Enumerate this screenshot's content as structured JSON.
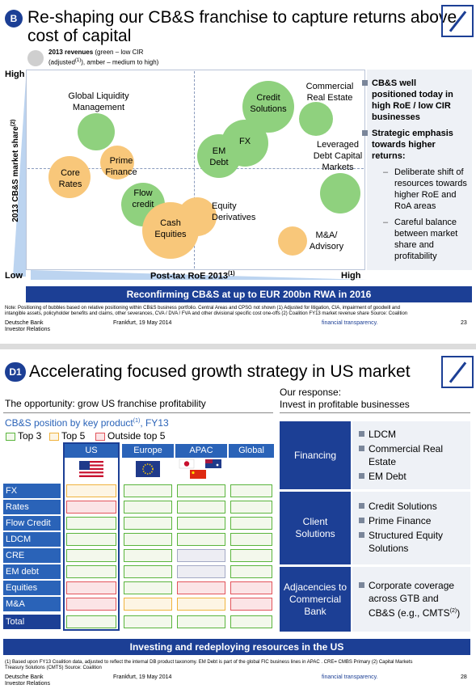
{
  "slide1": {
    "badge": "B",
    "title_line1": "Re-shaping our CB&S franchise to capture returns above",
    "title_line2": "cost of capital",
    "legend_bold": "2013 revenues",
    "legend_rest": " (green – low CIR",
    "legend_line2_a": "(adjusted",
    "legend_line2_sup": "(1)",
    "legend_line2_b": "), amber – medium to high)",
    "axis_high_y": "High",
    "axis_low": "Low",
    "axis_high_x": "High",
    "y_axis_title": "2013 CB&S market share",
    "y_axis_sup": "(2)",
    "x_axis_title": "Post-tax RoE 2013",
    "x_axis_sup": "(1)",
    "bubbles": [
      {
        "label": "Global Liquidity Management",
        "color": "green"
      },
      {
        "label": "Core Rates",
        "color": "amber"
      },
      {
        "label": "Prime Finance",
        "color": "amber"
      },
      {
        "label": "Flow credit",
        "color": "green"
      },
      {
        "label": "Cash Equities",
        "color": "amber"
      },
      {
        "label": "Equity Derivatives",
        "color": "amber"
      },
      {
        "label": "EM Debt",
        "color": "green"
      },
      {
        "label": "FX",
        "color": "green"
      },
      {
        "label": "Credit Solutions",
        "color": "green"
      },
      {
        "label": "Commercial Real Estate",
        "color": "green"
      },
      {
        "label": "Leveraged Debt Capital Markets",
        "color": "green"
      },
      {
        "label": "M&A/ Advisory",
        "color": "amber"
      }
    ],
    "labels": {
      "glm1": "Global Liquidity",
      "glm2": "Management",
      "core1": "Core",
      "core2": "Rates",
      "prime1": "Prime",
      "prime2": "Finance",
      "flow1": "Flow",
      "flow2": "credit",
      "cash1": "Cash",
      "cash2": "Equities",
      "eqd1": "Equity",
      "eqd2": "Derivatives",
      "em1": "EM",
      "em2": "Debt",
      "fx": "FX",
      "cs1": "Credit",
      "cs2": "Solutions",
      "cre1": "Commercial",
      "cre2": "Real Estate",
      "ldcm1": "Leveraged",
      "ldcm2": "Debt Capital",
      "ldcm3": "Markets",
      "ma1": "M&A/",
      "ma2": "Advisory"
    },
    "right_bullets": {
      "b1_l1": "CB&S well",
      "b1_l2": "positioned today in",
      "b1_l3": "high RoE / low CIR",
      "b1_l4": "businesses",
      "b2_l1": "Strategic emphasis",
      "b2_l2": "towards higher",
      "b2_l3": "returns:",
      "s1_l1": "Deliberate shift of",
      "s1_l2": "resources towards",
      "s1_l3": "higher RoE and",
      "s1_l4": "RoA areas",
      "s2_l1": "Careful balance",
      "s2_l2": "between market",
      "s2_l3": "share and",
      "s2_l4": "profitability"
    },
    "banner": "Reconfirming CB&S at up to EUR 200bn RWA in 2016",
    "note_l1": "Note: Positioning of bubbles based on relative positioning within CB&S business portfolio. Central Areas and CPSG not shown    (1) Adjusted for litigation, CIA, impairment of goodwill and",
    "note_l2": "intangible assets, policyholder benefits and claims, other severances, CVA / DVA / FVA and other divisional specific cost one-offs    (2) Coalition FY13 market revenue share    Source: Coalition",
    "footer_org1": "Deutsche Bank",
    "footer_org2": "Investor Relations",
    "footer_date": "Frankfurt, 19 May 2014",
    "footer_tag": "financial transparency.",
    "page": "23"
  },
  "slide2": {
    "badge": "D1",
    "title": "Accelerating focused growth strategy in US market",
    "opportunity": "The opportunity: grow US franchise profitability",
    "response_l1": "Our response:",
    "response_l2": "Invest in profitable businesses",
    "position_title": "CB&S position by key product",
    "position_sup": "(1)",
    "position_suffix": ", FY13",
    "legend": [
      "Top 3",
      "Top 5",
      "Outside top 5"
    ],
    "columns": [
      "US",
      "Europe",
      "APAC",
      "Global"
    ],
    "rows": [
      "FX",
      "Rates",
      "Flow Credit",
      "LDCM",
      "CRE",
      "EM debt",
      "Equities",
      "M&A",
      "Total"
    ],
    "grid": [
      [
        "a",
        "g",
        "g",
        "g"
      ],
      [
        "r",
        "g",
        "g",
        "g"
      ],
      [
        "g",
        "g",
        "g",
        "g"
      ],
      [
        "g",
        "g",
        "g",
        "g"
      ],
      [
        "g",
        "g",
        "n",
        "g"
      ],
      [
        "g",
        "g",
        "n",
        "g"
      ],
      [
        "r",
        "g",
        "r",
        "r"
      ],
      [
        "r",
        "a",
        "a",
        "r"
      ],
      [
        "g",
        "g",
        "g",
        "g"
      ]
    ],
    "responses": [
      {
        "head": "Financing",
        "items": [
          "LDCM",
          "Commercial Real Estate",
          "EM Debt"
        ]
      },
      {
        "head": "Client Solutions",
        "items": [
          "Credit Solutions",
          "Prime Finance",
          "Structured Equity Solutions"
        ]
      },
      {
        "head": "Adjacencies to Commercial Bank",
        "items": [
          "Corporate coverage across GTB and CB&S (e.g., CMTS(2))"
        ]
      }
    ],
    "resp_text": {
      "h1": "Financing",
      "h2_l1": "Client",
      "h2_l2": "Solutions",
      "h3_l1": "Adjacencies to",
      "h3_l2": "Commercial",
      "h3_l3": "Bank",
      "i1": "LDCM",
      "i2_l1": "Commercial Real",
      "i2_l2": "Estate",
      "i3": "EM Debt",
      "i4": "Credit Solutions",
      "i5": "Prime Finance",
      "i6_l1": "Structured Equity",
      "i6_l2": "Solutions",
      "i7_l1": "Corporate coverage",
      "i7_l2": "across GTB and",
      "i7_l3": "CB&S (e.g., CMTS",
      "i7_sup": "(2)",
      "i7_end": ")"
    },
    "banner": "Investing and redeploying resources in the US",
    "note_l1": "(1) Based upon FY13 Coalition data, adjusted to reflect the internal DB product taxonomy. EM Debt is part of the global FIC business lines in APAC . CRE= CMBS Primary (2) Capital Markets",
    "note_l2": "Treasury Solutions (CMTS)    Source:  Coalition",
    "footer_org1": "Deutsche Bank",
    "footer_org2": "Investor Relations",
    "footer_date": "Frankfurt, 19 May 2014",
    "footer_tag": "financial transparency.",
    "page": "28"
  },
  "colors": {
    "brand_blue": "#1c3f95",
    "bubble_green": "#8fd17e",
    "bubble_amber": "#f8c77a",
    "grid_green": "#5ab53d",
    "grid_amber": "#f0b33e",
    "grid_red": "#e2545b"
  }
}
